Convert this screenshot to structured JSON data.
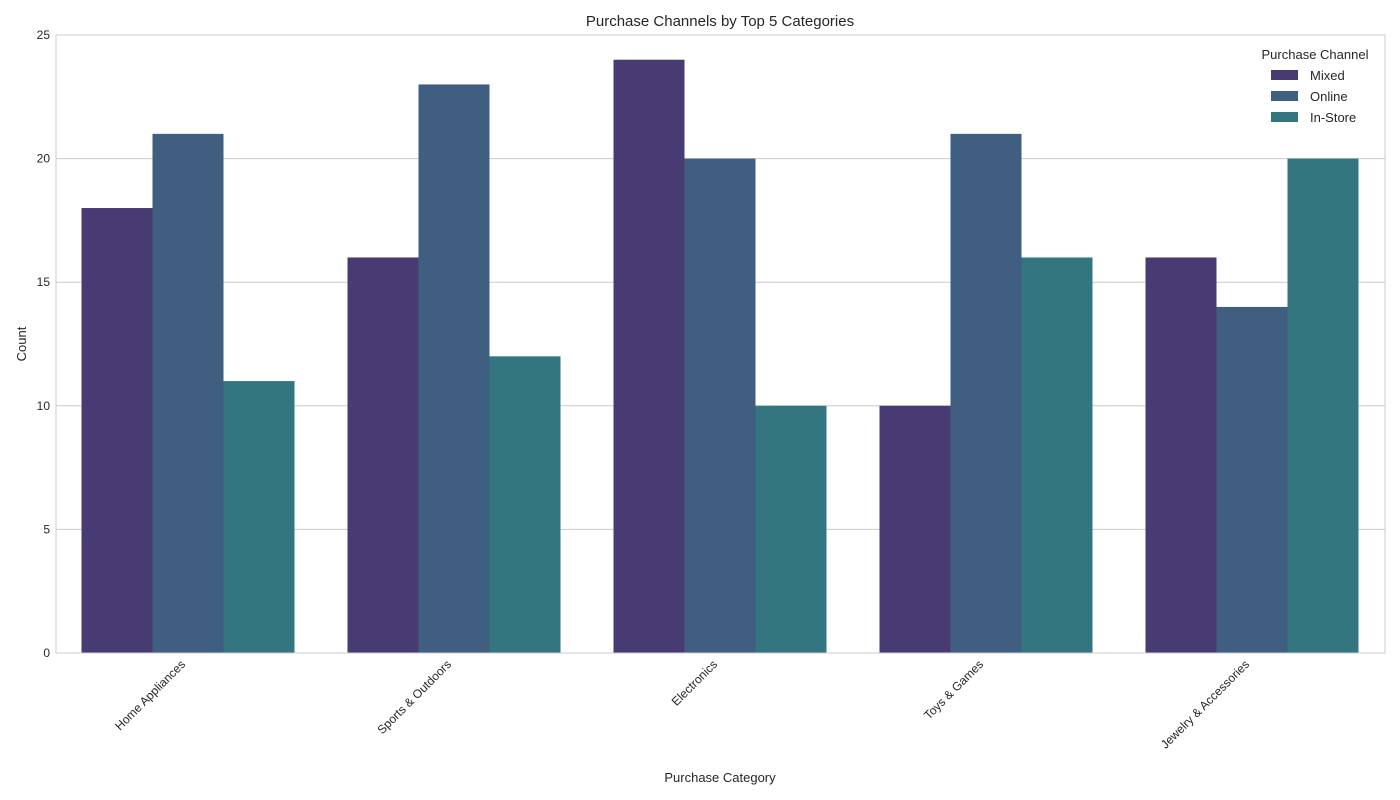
{
  "chart_data": {
    "type": "bar",
    "title": "Purchase Channels by Top 5 Categories",
    "xlabel": "Purchase Category",
    "ylabel": "Count",
    "categories": [
      "Home Appliances",
      "Sports & Outdoors",
      "Electronics",
      "Toys & Games",
      "Jewelry & Accessories"
    ],
    "series": [
      {
        "name": "Mixed",
        "values": [
          18,
          16,
          24,
          10,
          16
        ],
        "color": "#483a73"
      },
      {
        "name": "Online",
        "values": [
          21,
          23,
          20,
          21,
          14
        ],
        "color": "#405e80"
      },
      {
        "name": "In-Store",
        "values": [
          11,
          12,
          10,
          16,
          20
        ],
        "color": "#337680"
      }
    ],
    "ylim": [
      0,
      25
    ],
    "yticks": [
      0,
      5,
      10,
      15,
      20,
      25
    ],
    "grid": "horizontal",
    "legend": {
      "title": "Purchase Channel",
      "placement": "top-right"
    }
  }
}
